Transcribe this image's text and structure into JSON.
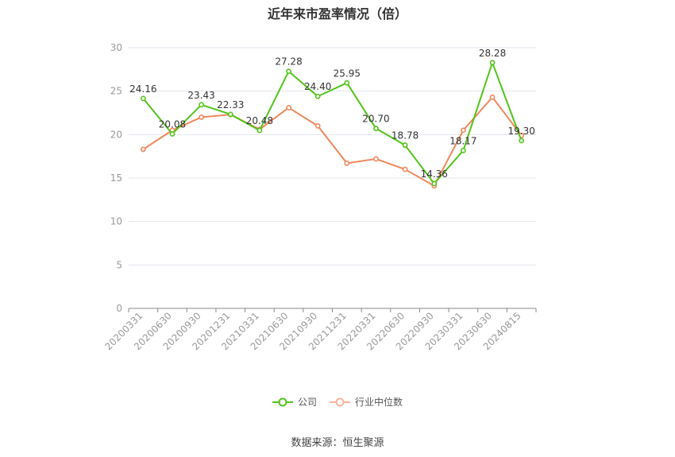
{
  "chart_data": {
    "type": "line",
    "title": "近年来市盈率情况（倍）",
    "categories": [
      "20200331",
      "20200630",
      "20200930",
      "20201231",
      "20210331",
      "20210630",
      "20210930",
      "20211231",
      "20220331",
      "20220630",
      "20220930",
      "20230331",
      "20230630",
      "20240815"
    ],
    "series": [
      {
        "name": "公司",
        "color": "#52c41a",
        "values": [
          24.16,
          20.08,
          23.43,
          22.33,
          20.48,
          27.28,
          24.4,
          25.95,
          20.7,
          18.78,
          14.36,
          18.17,
          28.28,
          19.3
        ],
        "labels": [
          "24.16",
          "20.08",
          "23.43",
          "22.33",
          "20.48",
          "27.28",
          "24.40",
          "25.95",
          "20.70",
          "18.78",
          "14.36",
          "18.17",
          "28.28",
          "19.30"
        ]
      },
      {
        "name": "行业中位数",
        "color": "#f0875a",
        "values": [
          18.3,
          20.5,
          22.0,
          22.3,
          20.6,
          23.1,
          21.0,
          16.7,
          17.2,
          16.0,
          14.1,
          20.5,
          24.3,
          19.9
        ]
      }
    ],
    "ylim": [
      0,
      30
    ],
    "yticks": [
      "0",
      "5",
      "10",
      "15",
      "20",
      "25",
      "30"
    ],
    "grid": true,
    "legend": "bottom-center"
  },
  "source": "数据来源：恒生聚源"
}
